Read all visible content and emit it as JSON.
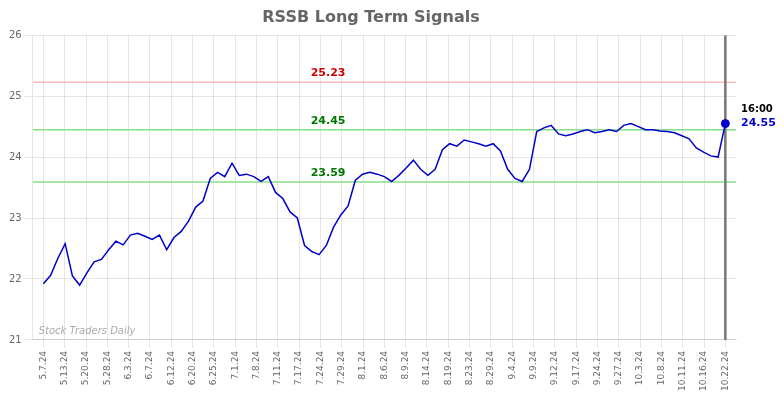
{
  "chart_data": {
    "type": "line",
    "title": "RSSB Long Term Signals",
    "color": "#0000cc",
    "x": [
      0,
      0.3404,
      0.6809,
      1.0213,
      1.3617,
      1.7021,
      2.0426,
      2.383,
      2.7234,
      3.0638,
      3.4043,
      3.7447,
      4.0851,
      4.4255,
      4.766,
      5.1064,
      5.4468,
      5.7872,
      6.1277,
      6.4681,
      6.8085,
      7.1489,
      7.4894,
      7.8298,
      8.1702,
      8.5106,
      8.8511,
      9.1915,
      9.5319,
      9.8723,
      10.2128,
      10.5532,
      10.8936,
      11.234,
      11.5745,
      11.9149,
      12.2553,
      12.5957,
      12.9362,
      13.2766,
      13.617,
      13.9574,
      14.2979,
      14.6383,
      14.9787,
      15.3191,
      15.6596,
      16,
      16.3404,
      16.6809,
      17.0213,
      17.3617,
      17.7021,
      18.0426,
      18.383,
      18.7234,
      19.0638,
      19.4043,
      19.7447,
      20.0851,
      20.4255,
      20.766,
      21.1064,
      21.4468,
      21.7872,
      22.1277,
      22.4681,
      22.8085,
      23.1489,
      23.4894,
      23.8298,
      24.1702,
      24.5106,
      24.8511,
      25.1915,
      25.5319,
      25.8723,
      26.2128,
      26.5532,
      26.8936,
      27.234,
      27.5745,
      27.9149,
      28.2553,
      28.5957,
      28.9362,
      29.2766,
      29.617,
      29.9574,
      30.2979,
      30.6383,
      30.9787,
      31.3191,
      31.6596,
      32
    ],
    "values": [
      21.92,
      22.06,
      22.34,
      22.58,
      22.05,
      21.9,
      22.1,
      22.28,
      22.32,
      22.48,
      22.62,
      22.56,
      22.72,
      22.75,
      22.7,
      22.65,
      22.72,
      22.48,
      22.68,
      22.78,
      22.95,
      23.18,
      23.28,
      23.65,
      23.75,
      23.68,
      23.9,
      23.7,
      23.72,
      23.68,
      23.6,
      23.68,
      23.42,
      23.32,
      23.1,
      23.0,
      22.55,
      22.45,
      22.4,
      22.55,
      22.85,
      23.05,
      23.2,
      23.62,
      23.72,
      23.75,
      23.72,
      23.68,
      23.6,
      23.7,
      23.82,
      23.95,
      23.8,
      23.7,
      23.8,
      24.12,
      24.22,
      24.18,
      24.28,
      24.25,
      24.22,
      24.18,
      24.22,
      24.1,
      23.8,
      23.65,
      23.6,
      23.8,
      24.42,
      24.48,
      24.52,
      24.38,
      24.35,
      24.38,
      24.42,
      24.45,
      24.4,
      24.42,
      24.45,
      24.42,
      24.52,
      24.55,
      24.5,
      24.45,
      24.45,
      24.43,
      24.42,
      24.4,
      24.35,
      24.3,
      24.15,
      24.08,
      24.02,
      24.0,
      24.55
    ],
    "xlim": [
      -0.5,
      32.5
    ],
    "xticks": [
      {
        "value": 0,
        "label": "5.7.24"
      },
      {
        "value": 1,
        "label": "5.13.24"
      },
      {
        "value": 2,
        "label": "5.20.24"
      },
      {
        "value": 3,
        "label": "5.28.24"
      },
      {
        "value": 4,
        "label": "6.3.24"
      },
      {
        "value": 5,
        "label": "6.7.24"
      },
      {
        "value": 6,
        "label": "6.12.24"
      },
      {
        "value": 7,
        "label": "6.20.24"
      },
      {
        "value": 8,
        "label": "6.25.24"
      },
      {
        "value": 9,
        "label": "7.1.24"
      },
      {
        "value": 10,
        "label": "7.8.24"
      },
      {
        "value": 11,
        "label": "7.11.24"
      },
      {
        "value": 12,
        "label": "7.17.24"
      },
      {
        "value": 13,
        "label": "7.24.24"
      },
      {
        "value": 14,
        "label": "7.29.24"
      },
      {
        "value": 15,
        "label": "8.1.24"
      },
      {
        "value": 16,
        "label": "8.6.24"
      },
      {
        "value": 17,
        "label": "8.9.24"
      },
      {
        "value": 18,
        "label": "8.14.24"
      },
      {
        "value": 19,
        "label": "8.19.24"
      },
      {
        "value": 20,
        "label": "8.23.24"
      },
      {
        "value": 21,
        "label": "8.29.24"
      },
      {
        "value": 22,
        "label": "9.4.24"
      },
      {
        "value": 23,
        "label": "9.9.24"
      },
      {
        "value": 24,
        "label": "9.12.24"
      },
      {
        "value": 25,
        "label": "9.17.24"
      },
      {
        "value": 26,
        "label": "9.24.24"
      },
      {
        "value": 27,
        "label": "9.27.24"
      },
      {
        "value": 28,
        "label": "10.3.24"
      },
      {
        "value": 29,
        "label": "10.8.24"
      },
      {
        "value": 30,
        "label": "10.11.24"
      },
      {
        "value": 31,
        "label": "10.16.24"
      },
      {
        "value": 32,
        "label": "10.22.24"
      }
    ],
    "ylim": [
      21,
      26
    ],
    "yticks": [
      21,
      22,
      23,
      24,
      25,
      26
    ],
    "grid": true,
    "annotations": [
      {
        "y": 25.23,
        "label": "25.23",
        "color": "#cc0000",
        "line_color": "#ffbbbb"
      },
      {
        "y": 24.45,
        "label": "24.45",
        "color": "#007700",
        "line_color": "#88dd88"
      },
      {
        "y": 23.59,
        "label": "23.59",
        "color": "#007700",
        "line_color": "#88dd88"
      }
    ],
    "last_price": {
      "x": 32,
      "y": 24.55,
      "label": "24.55",
      "time": "16:00",
      "color": "#0000cc"
    },
    "watermark": "Stock Traders Daily"
  }
}
